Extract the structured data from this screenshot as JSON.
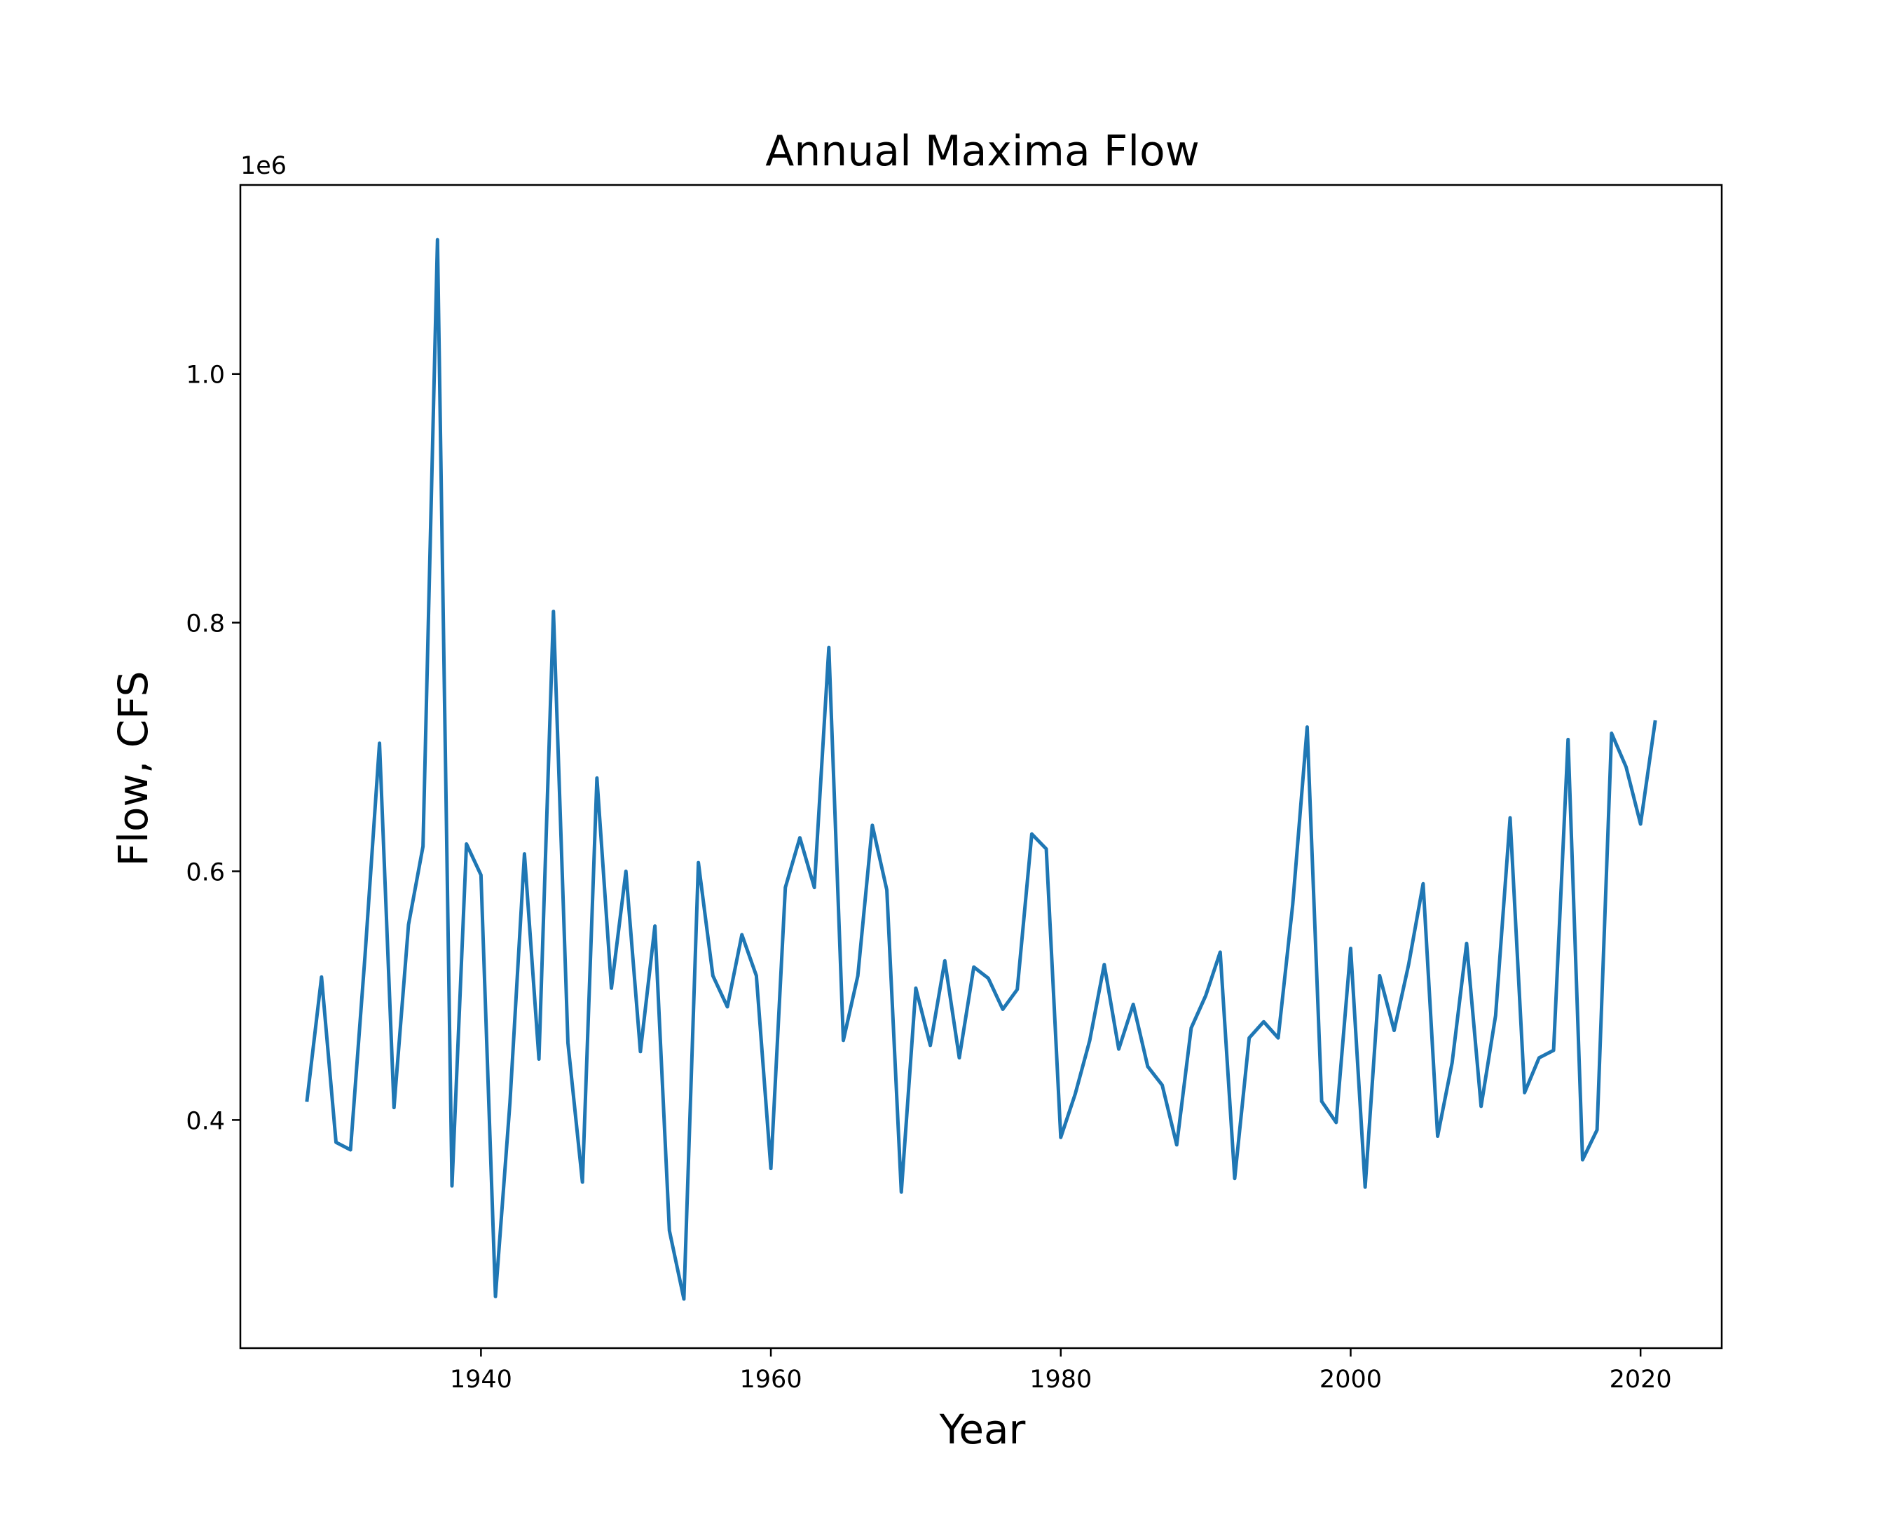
{
  "chart_data": {
    "type": "line",
    "title": "Annual Maxima Flow",
    "xlabel": "Year",
    "ylabel": "Flow, CFS",
    "y_offset_label": "1e6",
    "xlim": [
      1923.4,
      2025.6
    ],
    "ylim": [
      0.2165,
      1.152
    ],
    "x_ticks": [
      1940,
      1960,
      1980,
      2000,
      2020
    ],
    "x_tick_labels": [
      "1940",
      "1960",
      "1980",
      "2000",
      "2020"
    ],
    "y_ticks": [
      0.4,
      0.6,
      0.8,
      1.0
    ],
    "y_tick_labels": [
      "0.4",
      "0.6",
      "0.8",
      "1.0"
    ],
    "grid": false,
    "legend": "none",
    "series": [
      {
        "color": "#1f77b4",
        "x": [
          1928,
          1929,
          1930,
          1931,
          1932,
          1933,
          1934,
          1935,
          1936,
          1937,
          1938,
          1939,
          1940,
          1941,
          1942,
          1943,
          1944,
          1945,
          1946,
          1947,
          1948,
          1949,
          1950,
          1951,
          1952,
          1953,
          1954,
          1955,
          1956,
          1957,
          1958,
          1959,
          1960,
          1961,
          1962,
          1963,
          1964,
          1965,
          1966,
          1967,
          1968,
          1969,
          1970,
          1971,
          1972,
          1973,
          1974,
          1975,
          1976,
          1977,
          1978,
          1979,
          1980,
          1981,
          1982,
          1983,
          1984,
          1985,
          1986,
          1987,
          1988,
          1989,
          1990,
          1991,
          1992,
          1993,
          1994,
          1995,
          1996,
          1997,
          1998,
          1999,
          2000,
          2001,
          2002,
          2003,
          2004,
          2005,
          2006,
          2007,
          2008,
          2009,
          2010,
          2011,
          2012,
          2013,
          2014,
          2015,
          2016,
          2017,
          2018,
          2019,
          2020,
          2021
        ],
        "values": [
          0.416,
          0.515,
          0.382,
          0.376,
          0.532,
          0.703,
          0.41,
          0.557,
          0.62,
          1.108,
          0.347,
          0.622,
          0.597,
          0.258,
          0.414,
          0.614,
          0.449,
          0.809,
          0.462,
          0.35,
          0.675,
          0.506,
          0.6,
          0.455,
          0.556,
          0.311,
          0.256,
          0.607,
          0.516,
          0.491,
          0.549,
          0.516,
          0.361,
          0.587,
          0.627,
          0.587,
          0.78,
          0.464,
          0.516,
          0.637,
          0.585,
          0.342,
          0.506,
          0.46,
          0.528,
          0.45,
          0.523,
          0.514,
          0.489,
          0.505,
          0.63,
          0.618,
          0.386,
          0.421,
          0.464,
          0.525,
          0.457,
          0.493,
          0.443,
          0.428,
          0.38,
          0.474,
          0.5,
          0.535,
          0.353,
          0.466,
          0.479,
          0.466,
          0.573,
          0.716,
          0.415,
          0.398,
          0.538,
          0.346,
          0.516,
          0.472,
          0.525,
          0.59,
          0.387,
          0.446,
          0.542,
          0.411,
          0.484,
          0.643,
          0.422,
          0.45,
          0.456,
          0.706,
          0.368,
          0.392,
          0.711,
          0.684,
          0.638,
          0.72
        ]
      }
    ]
  }
}
